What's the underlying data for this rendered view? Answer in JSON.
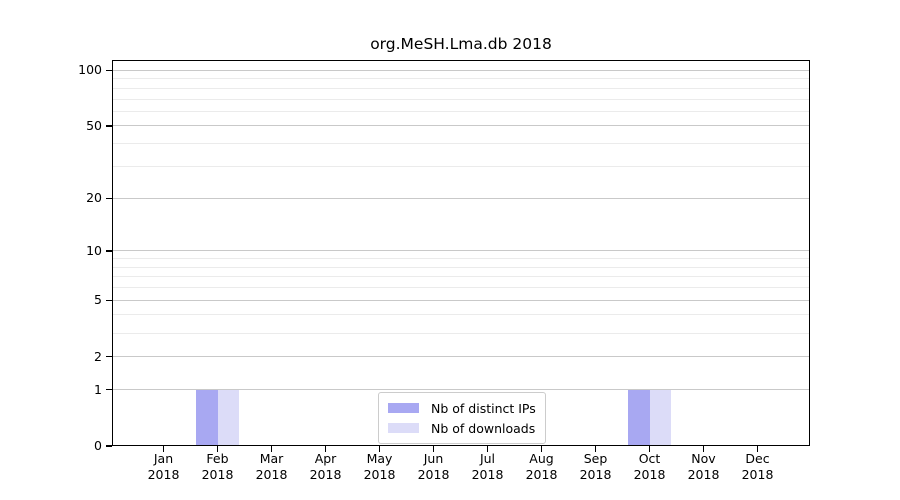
{
  "chart_data": {
    "type": "bar",
    "title": "org.MeSH.Lma.db 2018",
    "x_tick_months": [
      "Jan",
      "Feb",
      "Mar",
      "Apr",
      "May",
      "Jun",
      "Jul",
      "Aug",
      "Sep",
      "Oct",
      "Nov",
      "Dec"
    ],
    "x_tick_year": "2018",
    "series": [
      {
        "name": "Nb of distinct IPs",
        "color": "#a8a8f2",
        "values": [
          0,
          1,
          0,
          0,
          0,
          0,
          0,
          0,
          0,
          1,
          0,
          0
        ]
      },
      {
        "name": "Nb of downloads",
        "color": "#dcdcf8",
        "values": [
          0,
          1,
          0,
          0,
          0,
          0,
          0,
          0,
          0,
          1,
          0,
          0
        ]
      }
    ],
    "yscale": "log1p",
    "ylim": [
      0,
      113
    ],
    "yticks": [
      0,
      1,
      2,
      5,
      10,
      20,
      50,
      100
    ],
    "minor_yticks": [
      3,
      4,
      6,
      7,
      8,
      9,
      30,
      40,
      60,
      70,
      80,
      90
    ],
    "grid": "horizontal",
    "legend_position": "lower center"
  },
  "colors": {
    "major_grid": "#c9c9c9",
    "minor_grid": "#ebebeb",
    "axis": "#000000",
    "text": "#000000",
    "legend_border": "#cccccc"
  }
}
